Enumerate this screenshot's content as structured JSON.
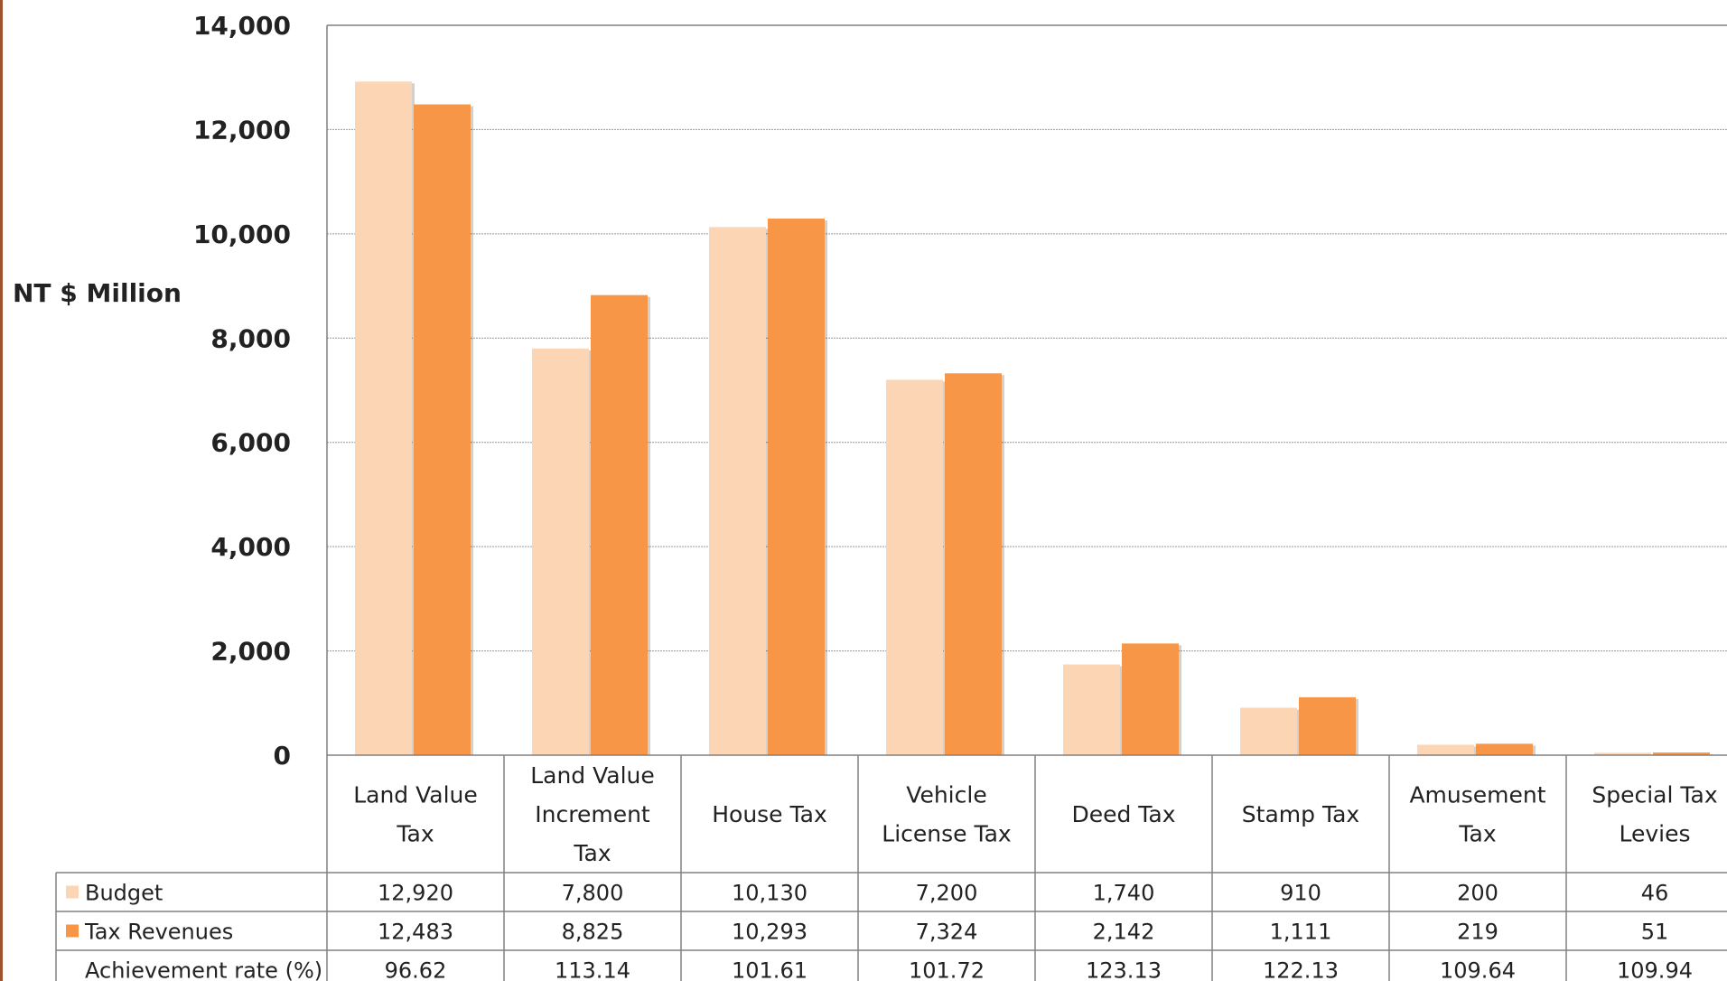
{
  "chart_data": {
    "type": "bar",
    "title": "",
    "xlabel": "",
    "ylabel": "NT $ Million",
    "ylim": [
      0,
      14000
    ],
    "y_ticks": [
      0,
      2000,
      4000,
      6000,
      8000,
      10000,
      12000,
      14000
    ],
    "y_tick_labels": [
      "0",
      "2,000",
      "4,000",
      "6,000",
      "8,000",
      "10,000",
      "12,000",
      "14,000"
    ],
    "grid": true,
    "categories": [
      [
        "Land Value",
        "Tax"
      ],
      [
        "Land Value",
        "Increment",
        "Tax"
      ],
      [
        "House Tax"
      ],
      [
        "Vehicle",
        "License Tax"
      ],
      [
        "Deed Tax"
      ],
      [
        "Stamp Tax"
      ],
      [
        "Amusement",
        "Tax"
      ],
      [
        "Special Tax",
        "Levies"
      ]
    ],
    "series": [
      {
        "name": "Budget",
        "color": "#fcd5b4",
        "values": [
          12920,
          7800,
          10130,
          7200,
          1740,
          910,
          200,
          46
        ],
        "labels": [
          "12,920",
          "7,800",
          "10,130",
          "7,200",
          "1,740",
          "910",
          "200",
          "46"
        ]
      },
      {
        "name": "Tax Revenues",
        "color": "#f79646",
        "values": [
          12483,
          8825,
          10293,
          7324,
          2142,
          1111,
          219,
          51
        ],
        "labels": [
          "12,483",
          "8,825",
          "10,293",
          "7,324",
          "2,142",
          "1,111",
          "219",
          "51"
        ]
      }
    ],
    "table_rows": [
      {
        "label": "Achievement rate (%)",
        "values": [
          "96.62",
          "113.14",
          "101.61",
          "101.72",
          "123.13",
          "122.13",
          "109.64",
          "109.94"
        ]
      }
    ],
    "colors": {
      "grid": "#9a9a9a",
      "axis": "#808080",
      "left_edge": "#a0522d"
    }
  }
}
